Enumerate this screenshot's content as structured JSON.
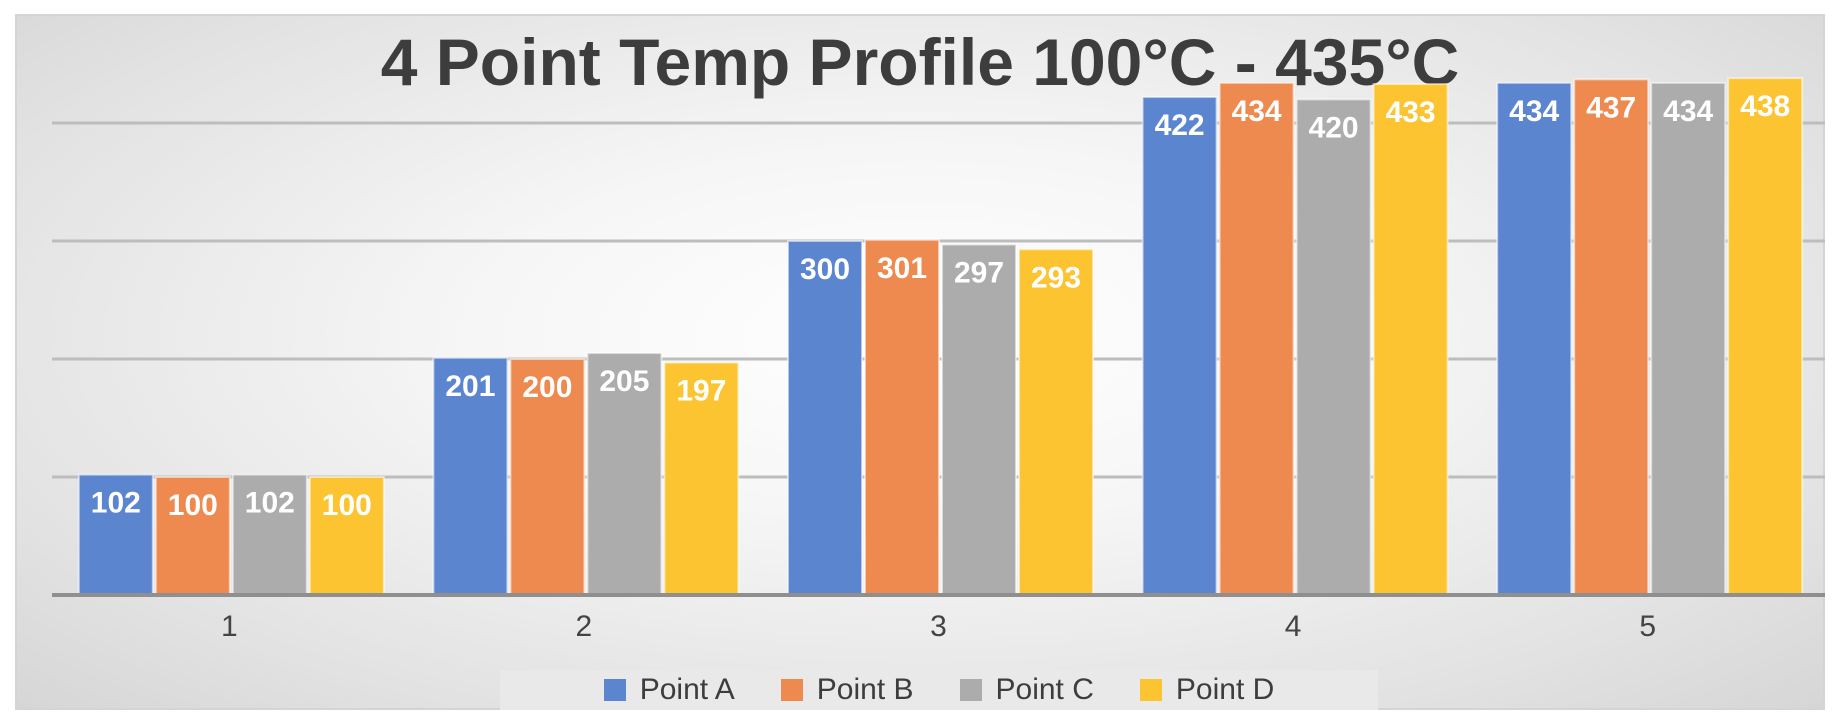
{
  "chart_data": {
    "type": "bar",
    "title": "4 Point Temp Profile 100°C - 435°C",
    "categories": [
      "1",
      "2",
      "3",
      "4",
      "5"
    ],
    "series": [
      {
        "name": "Point A",
        "color": "#5b86cf",
        "values": [
          102,
          201,
          300,
          422,
          434
        ]
      },
      {
        "name": "Point B",
        "color": "#ee8a4f",
        "values": [
          100,
          200,
          301,
          434,
          437
        ]
      },
      {
        "name": "Point C",
        "color": "#acacac",
        "values": [
          102,
          205,
          297,
          420,
          434
        ]
      },
      {
        "name": "Point D",
        "color": "#fdc432",
        "values": [
          100,
          197,
          293,
          433,
          438
        ]
      }
    ],
    "ylim": [
      0,
      500
    ],
    "yticks_visible": false,
    "gridlines": true,
    "data_labels": true,
    "legend_position": "bottom"
  }
}
